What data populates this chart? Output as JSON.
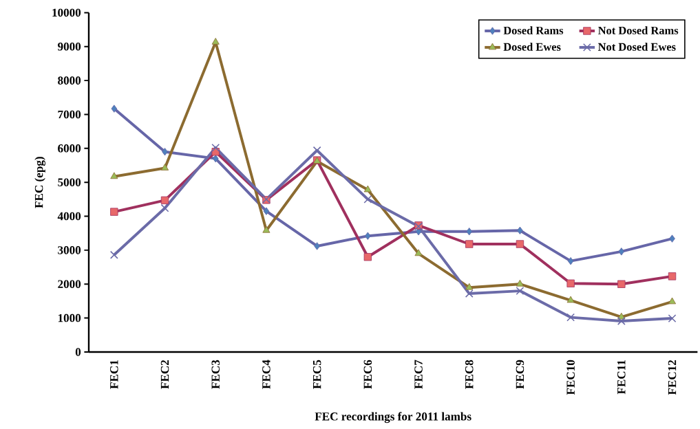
{
  "chart_data": {
    "type": "line",
    "xlabel": "FEC recordings for 2011 lambs",
    "ylabel": "FEC (epg)",
    "categories": [
      "FEC1",
      "FEC2",
      "FEC3",
      "FEC4",
      "FEC5",
      "FEC6",
      "FEC7",
      "FEC8",
      "FEC9",
      "FEC10",
      "FEC11",
      "FEC12"
    ],
    "series": [
      {
        "name": "Dosed Rams",
        "color": "#6666a8",
        "marker": "diamond",
        "values": [
          7170,
          5900,
          5700,
          4150,
          3120,
          3420,
          3550,
          3550,
          3580,
          2680,
          2960,
          3340
        ]
      },
      {
        "name": "Not Dosed Rams",
        "color": "#a0305e",
        "marker": "square",
        "values": [
          4130,
          4470,
          5900,
          4480,
          5650,
          2800,
          3730,
          3180,
          3180,
          2020,
          2000,
          2230
        ]
      },
      {
        "name": "Dosed Ewes",
        "color": "#8c6b30",
        "marker": "triangle",
        "values": [
          5170,
          5420,
          9130,
          3580,
          5620,
          4780,
          2900,
          1900,
          2000,
          1520,
          1030,
          1480
        ]
      },
      {
        "name": "Not Dosed Ewes",
        "color": "#6b6ba8",
        "marker": "cross",
        "values": [
          2860,
          4240,
          6020,
          4500,
          5940,
          4500,
          3700,
          1720,
          1800,
          1020,
          910,
          990
        ]
      }
    ],
    "ylim": [
      0,
      10000
    ],
    "yticks": [
      0,
      1000,
      2000,
      3000,
      4000,
      5000,
      6000,
      7000,
      8000,
      9000,
      10000
    ],
    "grid": false,
    "legend": "top right",
    "line_style": "solid"
  }
}
